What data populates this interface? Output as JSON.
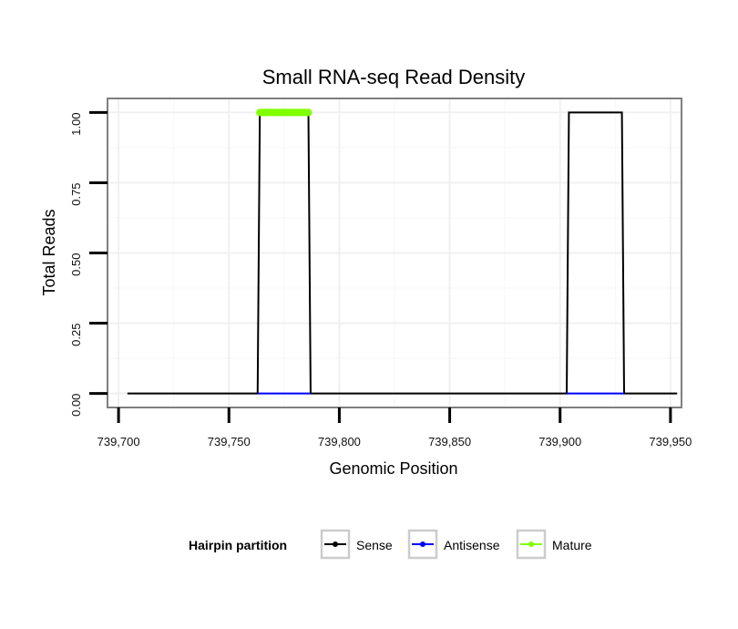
{
  "chart_data": {
    "type": "line",
    "title": "Small RNA-seq Read Density",
    "xlabel": "Genomic Position",
    "ylabel": "Total Reads",
    "xlim": [
      739695,
      739955
    ],
    "ylim": [
      -0.05,
      1.05
    ],
    "x_ticks": [
      739700,
      739750,
      739800,
      739850,
      739900,
      739950
    ],
    "x_tick_labels": [
      "739,700",
      "739,750",
      "739,800",
      "739,850",
      "739,900",
      "739,950"
    ],
    "y_ticks": [
      0,
      0.25,
      0.5,
      0.75,
      1
    ],
    "y_tick_labels": [
      "0.00",
      "0.25",
      "0.50",
      "0.75",
      "1.00"
    ],
    "grid": true,
    "series": [
      {
        "name": "Sense",
        "color": "#000000",
        "x": [
          739704,
          739763,
          739764,
          739786,
          739787,
          739903,
          739904,
          739928,
          739929,
          739953
        ],
        "y": [
          0,
          0,
          1,
          1,
          0,
          0,
          1,
          1,
          0,
          0
        ]
      },
      {
        "name": "Antisense",
        "color": "#0000ff",
        "x": [
          739763,
          739787,
          739903,
          739929
        ],
        "y": [
          0,
          0,
          0,
          0
        ],
        "segments": [
          [
            0,
            1
          ],
          [
            2,
            3
          ]
        ]
      },
      {
        "name": "Mature",
        "color": "#7fff00",
        "x": [
          739764,
          739786
        ],
        "y": [
          1,
          1
        ]
      }
    ],
    "legend": {
      "title": "Hairpin partition",
      "position": "bottom",
      "entries": [
        "Sense",
        "Antisense",
        "Mature"
      ]
    }
  }
}
